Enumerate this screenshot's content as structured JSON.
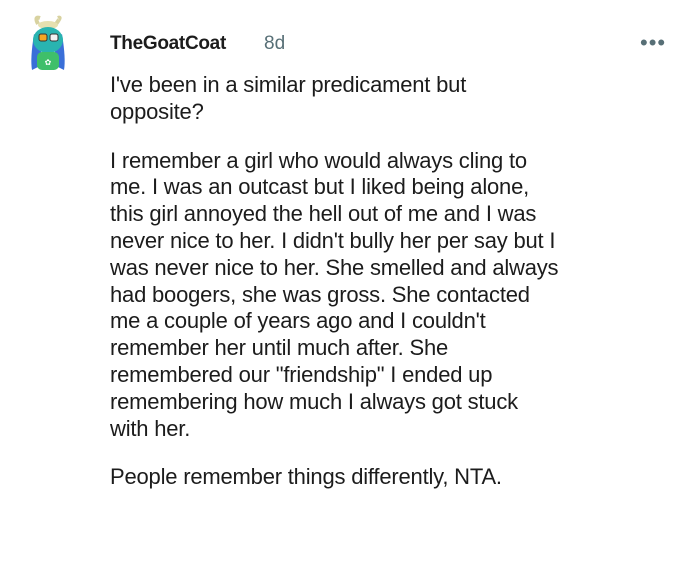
{
  "comment": {
    "author": "TheGoatCoat",
    "age": "8d",
    "more_icon": "ellipsis-icon",
    "paragraphs": [
      [
        "I've been in a similar predicament but",
        "opposite?"
      ],
      [
        "I remember a girl who would always cling to",
        "me. I was an outcast but I liked being alone,",
        "this girl annoyed the hell out of me and I was",
        "never nice to her. I didn't bully her per say but I",
        "was never nice to her. She smelled and always",
        "had boogers, she was gross. She contacted",
        "me a couple of years ago and I couldn't",
        "remember her until much after. She",
        "remembered our \"friendship\" I ended up",
        "remembering how much I always got stuck",
        "with her."
      ],
      [
        "People remember things differently, NTA."
      ]
    ]
  }
}
